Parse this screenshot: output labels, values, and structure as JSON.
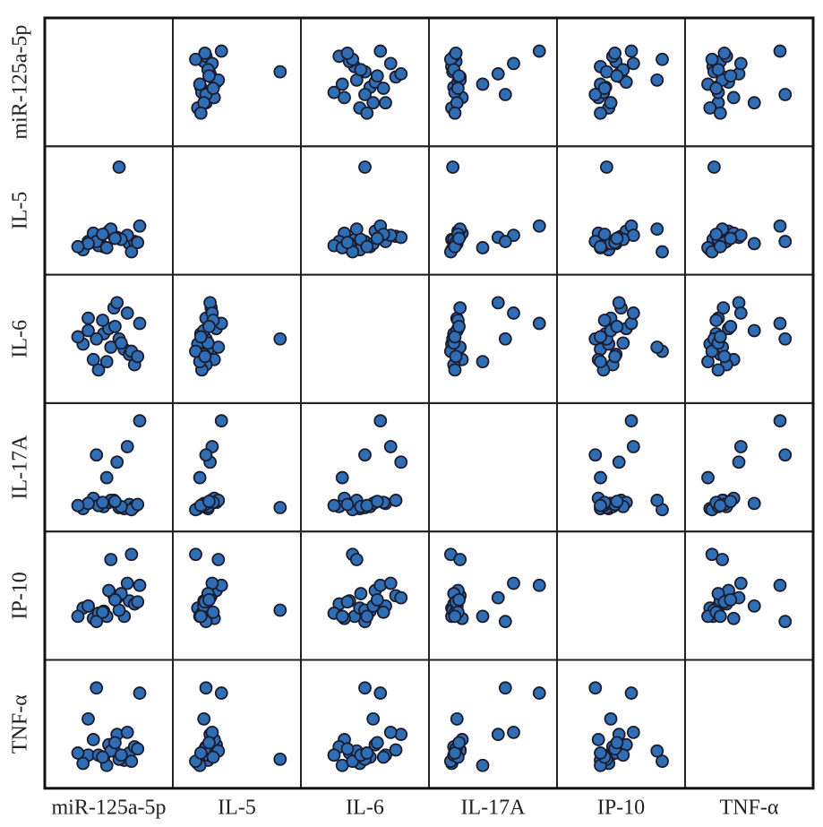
{
  "chart_data": {
    "type": "scatter_matrix",
    "variables": [
      "miR-125a-5p",
      "IL-5",
      "IL-6",
      "IL-17A",
      "IP-10",
      "TNF-α"
    ],
    "color": "#2f6db5",
    "lim": [
      0,
      100
    ],
    "data": [
      [
        30,
        45,
        55,
        65,
        70,
        50,
        25,
        35,
        75,
        60,
        80,
        40,
        58,
        68,
        48,
        38,
        72,
        52,
        30,
        62,
        78,
        44,
        20,
        56
      ],
      [
        20,
        15,
        25,
        22,
        18,
        30,
        12,
        28,
        20,
        92,
        35,
        16,
        24,
        26,
        14,
        20,
        10,
        32,
        18,
        22,
        19,
        27,
        15,
        23
      ],
      [
        70,
        55,
        80,
        40,
        35,
        60,
        45,
        30,
        25,
        50,
        65,
        20,
        85,
        75,
        28,
        50,
        38,
        42,
        58,
        46,
        33,
        68,
        52,
        62
      ],
      [
        15,
        12,
        18,
        10,
        14,
        16,
        10,
        20,
        12,
        11,
        95,
        13,
        55,
        70,
        40,
        62,
        9,
        18,
        15,
        12,
        14,
        16,
        13,
        17
      ],
      [
        40,
        35,
        50,
        30,
        45,
        55,
        38,
        28,
        42,
        36,
        60,
        33,
        48,
        62,
        30,
        25,
        90,
        85,
        40,
        52,
        44,
        34,
        30,
        46
      ],
      [
        20,
        18,
        25,
        15,
        22,
        30,
        12,
        35,
        28,
        16,
        80,
        20,
        40,
        42,
        10,
        85,
        14,
        24,
        55,
        20,
        26,
        18,
        22,
        32
      ]
    ]
  }
}
